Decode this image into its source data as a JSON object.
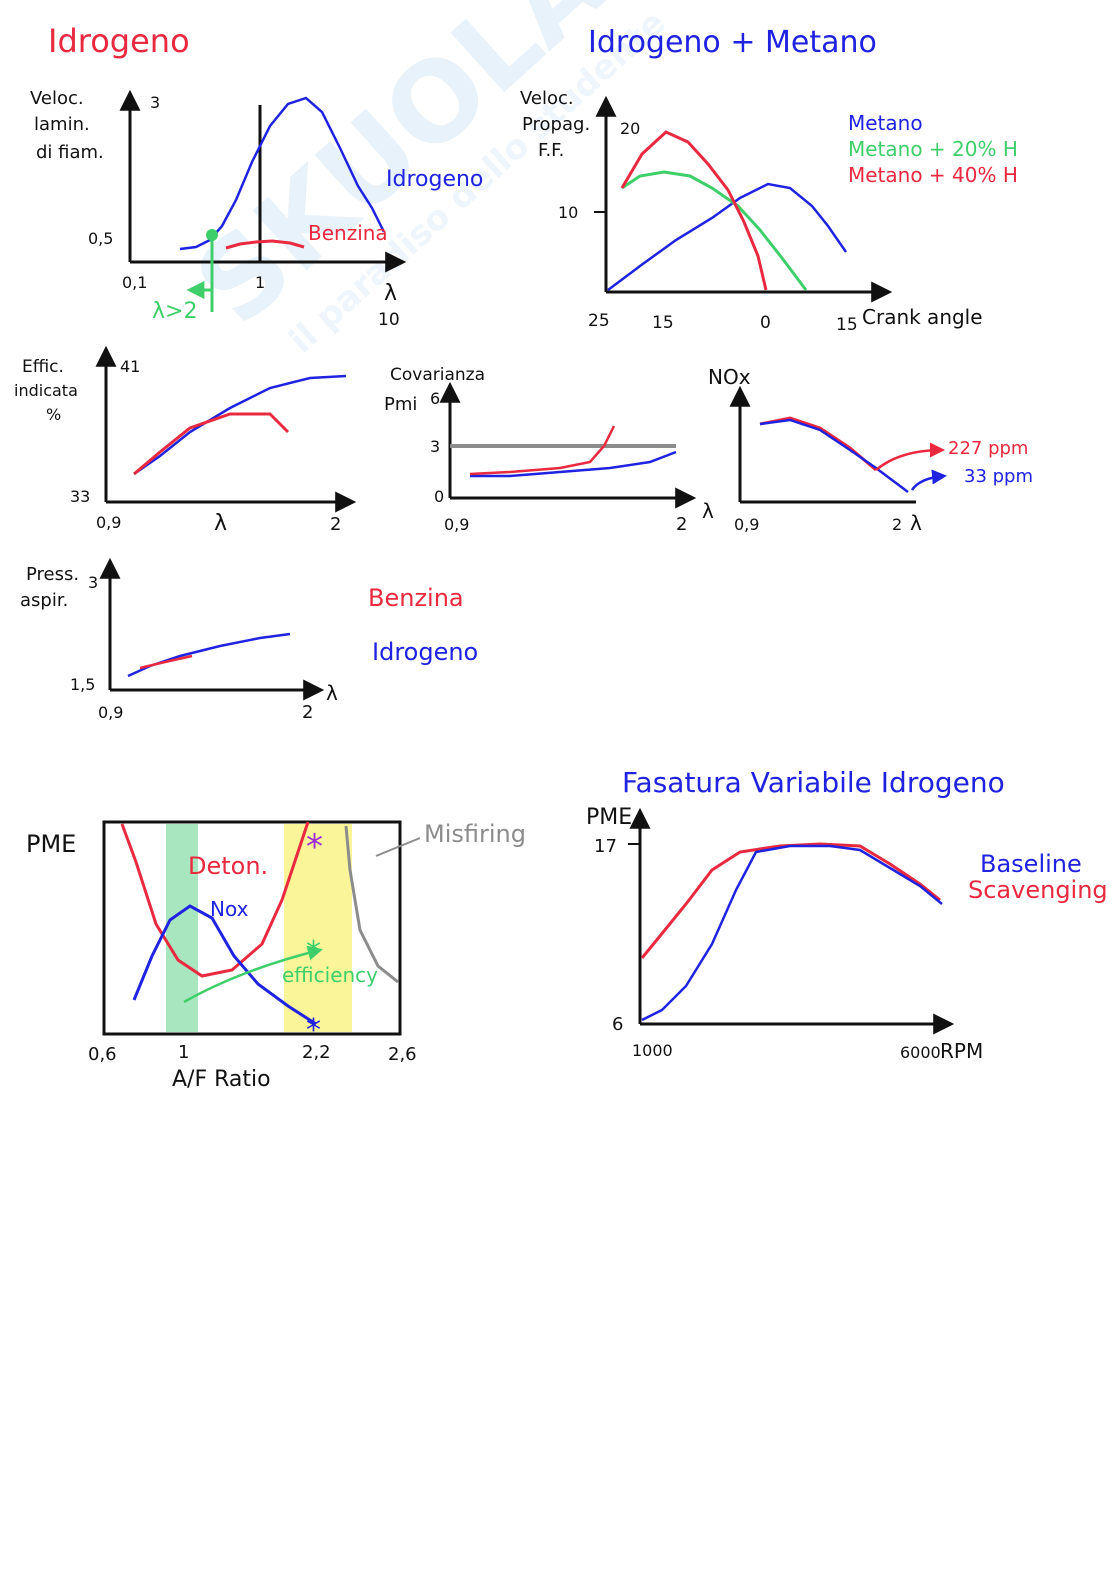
{
  "colors": {
    "red": "#e8293f",
    "blue": "#1f23e0",
    "green": "#3fcf6a",
    "gray": "#8c8c8c",
    "black": "#111111",
    "purple": "#9b2bd6",
    "yellow_band": "#fbf59a",
    "green_band": "#a8e6c0",
    "watermark": "#d7e9f6"
  },
  "watermark": {
    "brand": "SKUOLA.net",
    "slogan": "il paradiso dello studente"
  },
  "sections": {
    "idrogeno_title": "Idrogeno",
    "idrogeno_metano_title": "Idrogeno + Metano",
    "fasatura_title": "Fasatura Variabile Idrogeno"
  },
  "chart_data": [
    {
      "id": "laminar-speed",
      "type": "line",
      "ylabel_lines": [
        "Veloc.",
        "lamin.",
        "di fiam."
      ],
      "xlabel": "λ",
      "x_ticks": [
        "0,1",
        "1",
        "10"
      ],
      "y_ticks": [
        "0,5",
        "3"
      ],
      "annotation": "λ>2",
      "legend": [],
      "series": [
        {
          "name": "Idrogeno",
          "color": "blue",
          "x": [
            0.3,
            0.55,
            0.8,
            1.0,
            1.4,
            1.8,
            2.4,
            3.5,
            5.5,
            8.5
          ],
          "y": [
            0.35,
            0.42,
            0.7,
            1.55,
            2.6,
            2.95,
            2.85,
            2.4,
            1.6,
            0.8
          ]
        },
        {
          "name": "Benzina",
          "color": "red",
          "x": [
            0.75,
            0.9,
            1.0,
            1.2,
            1.5,
            2.0
          ],
          "y": [
            0.35,
            0.43,
            0.47,
            0.48,
            0.46,
            0.42
          ]
        }
      ]
    },
    {
      "id": "propagation-speed",
      "type": "line",
      "ylabel_lines": [
        "Veloc.",
        "Propag.",
        "F.F."
      ],
      "xlabel": "Crank angle",
      "x_ticks": [
        "25",
        "15",
        "0",
        "15"
      ],
      "y_ticks": [
        "10",
        "20"
      ],
      "legend": [
        "Metano",
        "Metano + 20% H",
        "Metano + 40% H"
      ],
      "series": [
        {
          "name": "Metano",
          "color": "blue",
          "x": [
            25,
            18,
            10,
            2,
            -5,
            -10,
            -15
          ],
          "y": [
            0,
            4,
            8.5,
            11,
            13,
            11.5,
            7
          ]
        },
        {
          "name": "Metano + 20% H",
          "color": "green",
          "x": [
            23,
            18,
            15,
            10,
            6,
            3,
            -2
          ],
          "y": [
            12.5,
            14,
            14.2,
            13.5,
            12,
            9.5,
            0
          ]
        },
        {
          "name": "Metano + 40% H",
          "color": "red",
          "x": [
            23,
            18,
            14,
            10,
            6,
            3,
            0
          ],
          "y": [
            12.5,
            17,
            19.2,
            17.5,
            13,
            8,
            0
          ]
        }
      ]
    },
    {
      "id": "efficiency",
      "type": "line",
      "ylabel_lines": [
        "Effic.",
        "indicata",
        "%"
      ],
      "xlabel": "λ",
      "x_ticks": [
        "0,9",
        "2"
      ],
      "y_ticks": [
        "33",
        "41"
      ],
      "series": [
        {
          "color": "blue",
          "x": [
            0.95,
            1.1,
            1.3,
            1.5,
            1.7,
            1.9
          ],
          "y": [
            34.5,
            36.5,
            38.2,
            39.3,
            40.3,
            40.7
          ]
        },
        {
          "color": "red",
          "x": [
            0.95,
            1.1,
            1.3,
            1.5,
            1.6
          ],
          "y": [
            34.5,
            36.8,
            38.2,
            38.3,
            37.6
          ]
        }
      ]
    },
    {
      "id": "covariance",
      "type": "line",
      "ylabel_lines": [
        "Covarianza",
        "Pmi"
      ],
      "xlabel": "λ",
      "x_ticks": [
        "0,9",
        "2"
      ],
      "y_ticks": [
        "0",
        "3",
        "6"
      ],
      "threshold": 3,
      "series": [
        {
          "color": "blue",
          "x": [
            0.95,
            1.2,
            1.5,
            1.8,
            2.0
          ],
          "y": [
            1.2,
            1.25,
            1.4,
            1.7,
            2.3
          ]
        },
        {
          "color": "red",
          "x": [
            0.95,
            1.2,
            1.5,
            1.6,
            1.7
          ],
          "y": [
            1.3,
            1.4,
            1.8,
            2.6,
            3.8
          ]
        }
      ]
    },
    {
      "id": "nox",
      "type": "line",
      "ylabel_lines": [
        "NOx"
      ],
      "xlabel": "λ",
      "x_ticks": [
        "0,9",
        "2"
      ],
      "y_ticks": [],
      "labels": [
        "227 ppm",
        "33 ppm"
      ],
      "series": [
        {
          "color": "blue",
          "x": [
            1.0,
            1.2,
            1.5,
            1.8,
            2.0
          ],
          "y": [
            4.3,
            4.5,
            3.5,
            2.0,
            0.5
          ]
        },
        {
          "color": "red",
          "x": [
            1.0,
            1.2,
            1.5,
            1.7,
            1.9
          ],
          "y": [
            4.3,
            4.5,
            3.4,
            2.3,
            1.2
          ]
        }
      ]
    },
    {
      "id": "exhaust-pressure",
      "type": "line",
      "ylabel_lines": [
        "Press.",
        "aspir."
      ],
      "xlabel": "λ",
      "x_ticks": [
        "0,9",
        "2"
      ],
      "y_ticks": [
        "1,5",
        "3"
      ],
      "legend": [
        "Benzina",
        "Idrogeno"
      ],
      "series": [
        {
          "name": "Idrogeno",
          "color": "blue",
          "x": [
            1.0,
            1.2,
            1.5,
            1.8
          ],
          "y": [
            1.6,
            2.0,
            2.3,
            2.5
          ]
        },
        {
          "name": "Benzina",
          "color": "red",
          "x": [
            1.05,
            1.3
          ],
          "y": [
            1.7,
            1.9
          ]
        }
      ]
    },
    {
      "id": "pme-af-ratio",
      "type": "line",
      "ylabel_lines": [
        "PME"
      ],
      "xlabel": "A/F Ratio",
      "x_ticks": [
        "0,6",
        "1",
        "2,2",
        "2,6"
      ],
      "labels": {
        "deton": "Deton.",
        "nox": "Nox",
        "efficiency": "efficiency",
        "misfiring": "Misfiring"
      },
      "series": [
        {
          "name": "Deton.",
          "color": "red",
          "x": [
            0.65,
            0.85,
            1.1,
            1.4,
            1.8,
            2.1
          ],
          "y": [
            10,
            6,
            3,
            2.6,
            4.8,
            10
          ]
        },
        {
          "name": "Nox",
          "color": "blue",
          "x": [
            0.65,
            0.85,
            1.0,
            1.2,
            1.5,
            1.9,
            2.2
          ],
          "y": [
            0.2,
            3.5,
            5.4,
            4.8,
            2.2,
            0.8,
            0
          ]
        },
        {
          "name": "Misfiring",
          "color": "gray",
          "x": [
            2.35,
            2.4,
            2.5,
            2.6
          ],
          "y": [
            9.6,
            6.5,
            3.5,
            2.2
          ]
        }
      ]
    },
    {
      "id": "pme-rpm",
      "type": "line",
      "ylabel_lines": [
        "PME"
      ],
      "xlabel": "RPM",
      "x_ticks": [
        "1000",
        "6000"
      ],
      "y_ticks": [
        "6",
        "17"
      ],
      "legend": [
        "Baseline",
        "Scavenging"
      ],
      "series": [
        {
          "name": "Baseline",
          "color": "blue",
          "x": [
            1000,
            1500,
            2000,
            2500,
            3000,
            4000,
            4500,
            5000,
            5500,
            6000
          ],
          "y": [
            6,
            7,
            9.5,
            14,
            17,
            17,
            17,
            16.5,
            15.5,
            14
          ]
        },
        {
          "name": "Scavenging",
          "color": "red",
          "x": [
            1000,
            1200,
            1500,
            1800,
            2500,
            3500,
            4500,
            5000,
            5500,
            6000
          ],
          "y": [
            10,
            12,
            14,
            16.2,
            16.8,
            17.1,
            17,
            16.6,
            15.8,
            14.1
          ]
        }
      ]
    }
  ]
}
